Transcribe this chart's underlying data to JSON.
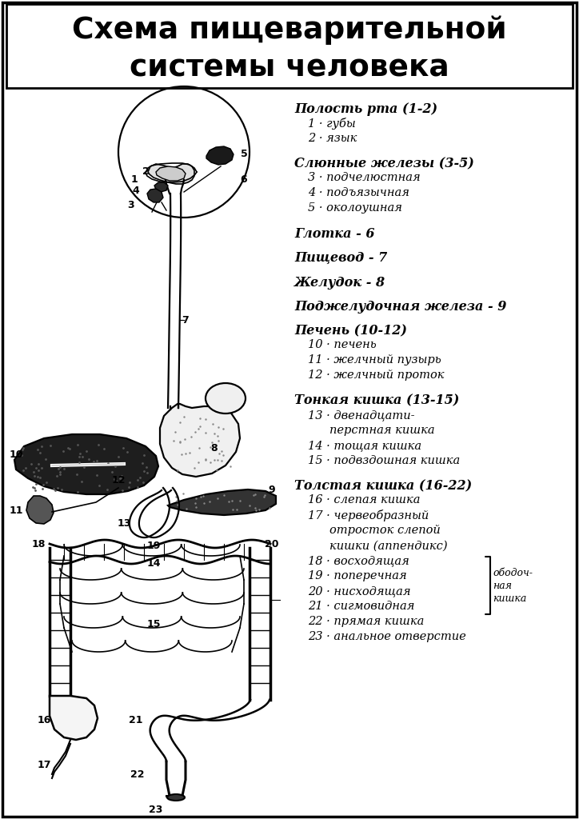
{
  "title_line1": "Схема пищеварительной",
  "title_line2": "системы человека",
  "bg_color": "#ffffff",
  "legend_items": [
    {
      "text": "Полость рта (1-2)",
      "style": "bold_italic",
      "indent": 0
    },
    {
      "text": "1 · губы",
      "style": "italic",
      "indent": 1
    },
    {
      "text": "2 · язык",
      "style": "italic",
      "indent": 1
    },
    {
      "text": "",
      "style": "normal",
      "indent": 0
    },
    {
      "text": "Слюнные железы (3-5)",
      "style": "bold_italic",
      "indent": 0
    },
    {
      "text": "3 · подчелюстная",
      "style": "italic",
      "indent": 1
    },
    {
      "text": "4 · подъязычная",
      "style": "italic",
      "indent": 1
    },
    {
      "text": "5 · околоушная",
      "style": "italic",
      "indent": 1
    },
    {
      "text": "",
      "style": "normal",
      "indent": 0
    },
    {
      "text": "Глотка - 6",
      "style": "bold_italic",
      "indent": 0
    },
    {
      "text": "",
      "style": "normal",
      "indent": 0
    },
    {
      "text": "Пищевод - 7",
      "style": "bold_italic",
      "indent": 0
    },
    {
      "text": "",
      "style": "normal",
      "indent": 0
    },
    {
      "text": "Желудок - 8",
      "style": "bold_italic",
      "indent": 0
    },
    {
      "text": "",
      "style": "normal",
      "indent": 0
    },
    {
      "text": "Поджелудочная железа - 9",
      "style": "bold_italic",
      "indent": 0
    },
    {
      "text": "",
      "style": "normal",
      "indent": 0
    },
    {
      "text": "Печень (10-12)",
      "style": "bold_italic",
      "indent": 0
    },
    {
      "text": "10 · печень",
      "style": "italic",
      "indent": 1
    },
    {
      "text": "11 · желчный пузырь",
      "style": "italic",
      "indent": 1
    },
    {
      "text": "12 · желчный проток",
      "style": "italic",
      "indent": 1
    },
    {
      "text": "",
      "style": "normal",
      "indent": 0
    },
    {
      "text": "Тонкая кишка (13-15)",
      "style": "bold_italic",
      "indent": 0
    },
    {
      "text": "13 · двенадцати-",
      "style": "italic",
      "indent": 1
    },
    {
      "text": "перстная кишка",
      "style": "italic",
      "indent": 2
    },
    {
      "text": "14 · тощая кишка",
      "style": "italic",
      "indent": 1
    },
    {
      "text": "15 · подвздошная кишка",
      "style": "italic",
      "indent": 1
    },
    {
      "text": "",
      "style": "normal",
      "indent": 0
    },
    {
      "text": "Толстая кишка (16-22)",
      "style": "bold_italic",
      "indent": 0
    },
    {
      "text": "16 · слепая кишка",
      "style": "italic",
      "indent": 1
    },
    {
      "text": "17 · червеобразный",
      "style": "italic",
      "indent": 1
    },
    {
      "text": "отросток слепой",
      "style": "italic",
      "indent": 2
    },
    {
      "text": "кишки (аппендикс)",
      "style": "italic",
      "indent": 2
    },
    {
      "text": "18 · восходящая",
      "style": "italic",
      "indent": 1
    },
    {
      "text": "19 · поперечная",
      "style": "italic",
      "indent": 1
    },
    {
      "text": "20 · нисходящая",
      "style": "italic",
      "indent": 1
    },
    {
      "text": "21 · сигмовидная",
      "style": "italic",
      "indent": 1
    },
    {
      "text": "22 · прямая кишка",
      "style": "italic",
      "indent": 1
    },
    {
      "text": "23 · анальное отверстие",
      "style": "italic",
      "indent": 1
    }
  ]
}
